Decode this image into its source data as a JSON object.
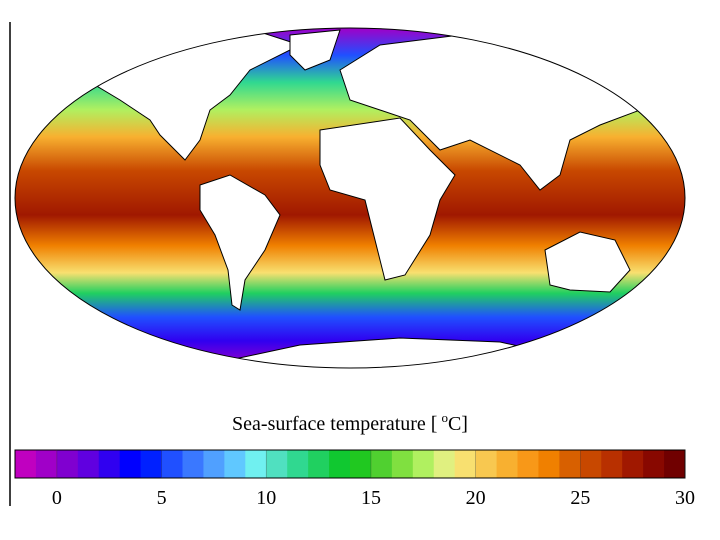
{
  "title": "Sea-surface temperature [",
  "title_superscript": "o",
  "title_end": "C]",
  "colorbar": {
    "lim": [
      -2,
      30
    ],
    "ticks": [
      0,
      5,
      10,
      15,
      20,
      25,
      30
    ],
    "colors": [
      "#c000c0",
      "#a000c8",
      "#8000d0",
      "#6000e0",
      "#3000f0",
      "#0000ff",
      "#0020ff",
      "#2050ff",
      "#3a78ff",
      "#50a0ff",
      "#60c8ff",
      "#70f0f0",
      "#50e0c0",
      "#30d890",
      "#20d060",
      "#10c830",
      "#20c820",
      "#50d030",
      "#80e040",
      "#b0f060",
      "#e0f080",
      "#f8e070",
      "#f8c850",
      "#f8b030",
      "#f89818",
      "#f08000",
      "#d86000",
      "#c84800",
      "#b83000",
      "#a01800",
      "#880800",
      "#700000"
    ]
  }
}
